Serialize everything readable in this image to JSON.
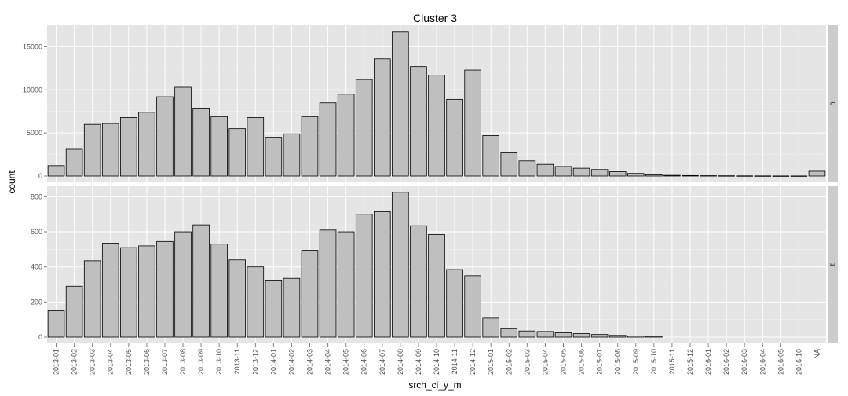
{
  "chart_data": {
    "type": "bar",
    "title": "Cluster  3",
    "xlabel": "srch_ci_y_m",
    "ylabel": "count",
    "categories": [
      "2013-01",
      "2013-02",
      "2013-03",
      "2013-04",
      "2013-05",
      "2013-06",
      "2013-07",
      "2013-08",
      "2013-09",
      "2013-10",
      "2013-11",
      "2013-12",
      "2014-01",
      "2014-02",
      "2014-03",
      "2014-04",
      "2014-05",
      "2014-06",
      "2014-07",
      "2014-08",
      "2014-09",
      "2014-10",
      "2014-11",
      "2014-12",
      "2015-01",
      "2015-02",
      "2015-03",
      "2015-04",
      "2015-05",
      "2015-06",
      "2015-07",
      "2015-08",
      "2015-09",
      "2015-10",
      "2015-11",
      "2015-12",
      "2016-01",
      "2016-02",
      "2016-03",
      "2016-04",
      "2016-05",
      "2016-10",
      "NA"
    ],
    "facets": [
      {
        "strip_label": "0",
        "ylim": [
          0,
          17500
        ],
        "yticks": [
          0,
          5000,
          10000,
          15000
        ],
        "ytick_labels": [
          "0",
          "5000",
          "10000",
          "15000"
        ],
        "values": [
          1200,
          3100,
          6000,
          6100,
          6800,
          7400,
          9200,
          10300,
          7800,
          6900,
          5500,
          6800,
          4500,
          4900,
          6900,
          8500,
          9500,
          11200,
          13600,
          16700,
          12700,
          11700,
          8900,
          12300,
          4700,
          2700,
          1750,
          1350,
          1100,
          900,
          750,
          500,
          300,
          150,
          80,
          60,
          40,
          30,
          20,
          15,
          10,
          10,
          550
        ]
      },
      {
        "strip_label": "1",
        "ylim": [
          0,
          860
        ],
        "yticks": [
          0,
          200,
          400,
          600,
          800
        ],
        "ytick_labels": [
          "0",
          "200",
          "400",
          "600",
          "800"
        ],
        "values": [
          150,
          290,
          435,
          535,
          510,
          520,
          545,
          600,
          640,
          530,
          440,
          400,
          325,
          335,
          495,
          610,
          600,
          700,
          715,
          825,
          635,
          585,
          385,
          350,
          108,
          48,
          35,
          32,
          25,
          20,
          15,
          10,
          7,
          5,
          null,
          null,
          null,
          null,
          null,
          null,
          null,
          null,
          null
        ]
      }
    ],
    "grid": true,
    "bar_fill": "#bfbfbf",
    "bar_stroke": "#000000",
    "panel_bg": "#e5e5e5",
    "strip_bg": "#cccccc"
  }
}
